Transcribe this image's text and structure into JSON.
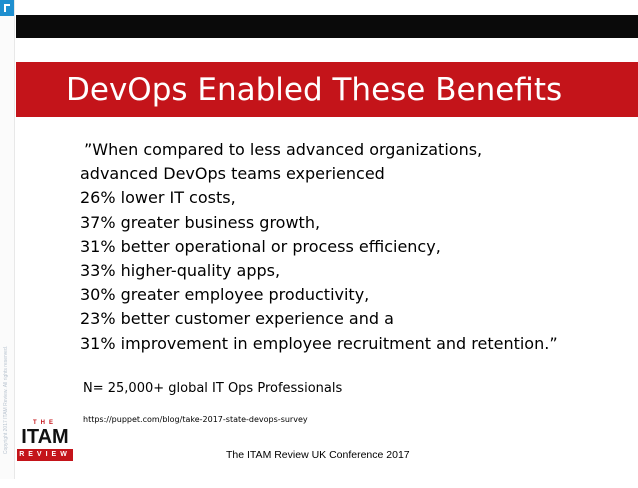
{
  "slide": {
    "title": "DevOps Enabled These Benefits",
    "quote_lines": [
      "”When compared to less advanced organizations,",
      "advanced DevOps teams experienced",
      "26% lower IT costs,",
      "37% greater business growth,",
      "31% better operational or process efficiency,",
      "33% higher-quality apps,",
      "30% greater employee productivity,",
      "23% better customer experience and a",
      "31% improvement in employee recruitment and retention.”"
    ],
    "stat_line": "N= 25,000+ global IT Ops Professionals",
    "source_url": "https://puppet.com/blog/take-2017-state-devops-survey",
    "footer": "The ITAM Review UK Conference 2017"
  },
  "logo": {
    "the": "THE",
    "itam": "ITAM",
    "review": "REVIEW"
  },
  "sidebar": {
    "copyright": "Copyright 2017 ITAM Review. All rights reserved."
  },
  "colors": {
    "accent_red": "#c4141a",
    "top_bar": "#0a0a0a",
    "corner_blue": "#1f8fcf"
  }
}
